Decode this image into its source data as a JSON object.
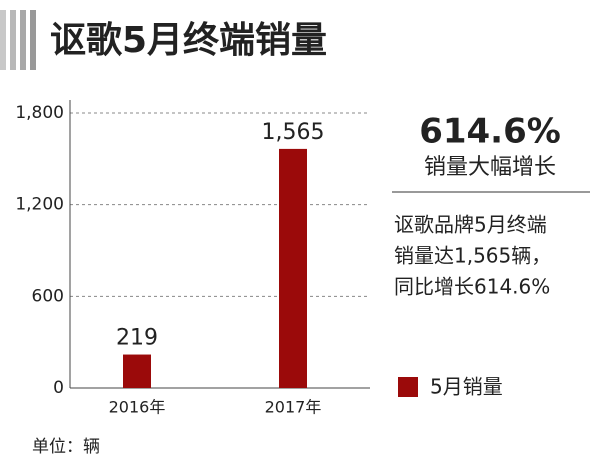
{
  "chart_data": {
    "type": "bar",
    "title": "讴歌5月终端销量",
    "categories": [
      "2016年",
      "2017年"
    ],
    "series": [
      {
        "name": "5月销量",
        "color": "#9b0a0a",
        "values": [
          219,
          1565
        ],
        "value_labels": [
          "219",
          "1,565"
        ]
      }
    ],
    "ylim": [
      0,
      1800
    ],
    "yticks": [
      0,
      600,
      {
        "value": 1200,
        "label": "1,200"
      },
      {
        "value": 1800,
        "label": "1,800"
      }
    ],
    "grid": true,
    "highlight": "614.6%",
    "highlight_caption": "销量大幅增长",
    "note_lines": [
      "讴歌品牌5月终端",
      "销量达1,565辆，",
      "同比增长614.6%"
    ],
    "unit_note": "单位：辆"
  }
}
